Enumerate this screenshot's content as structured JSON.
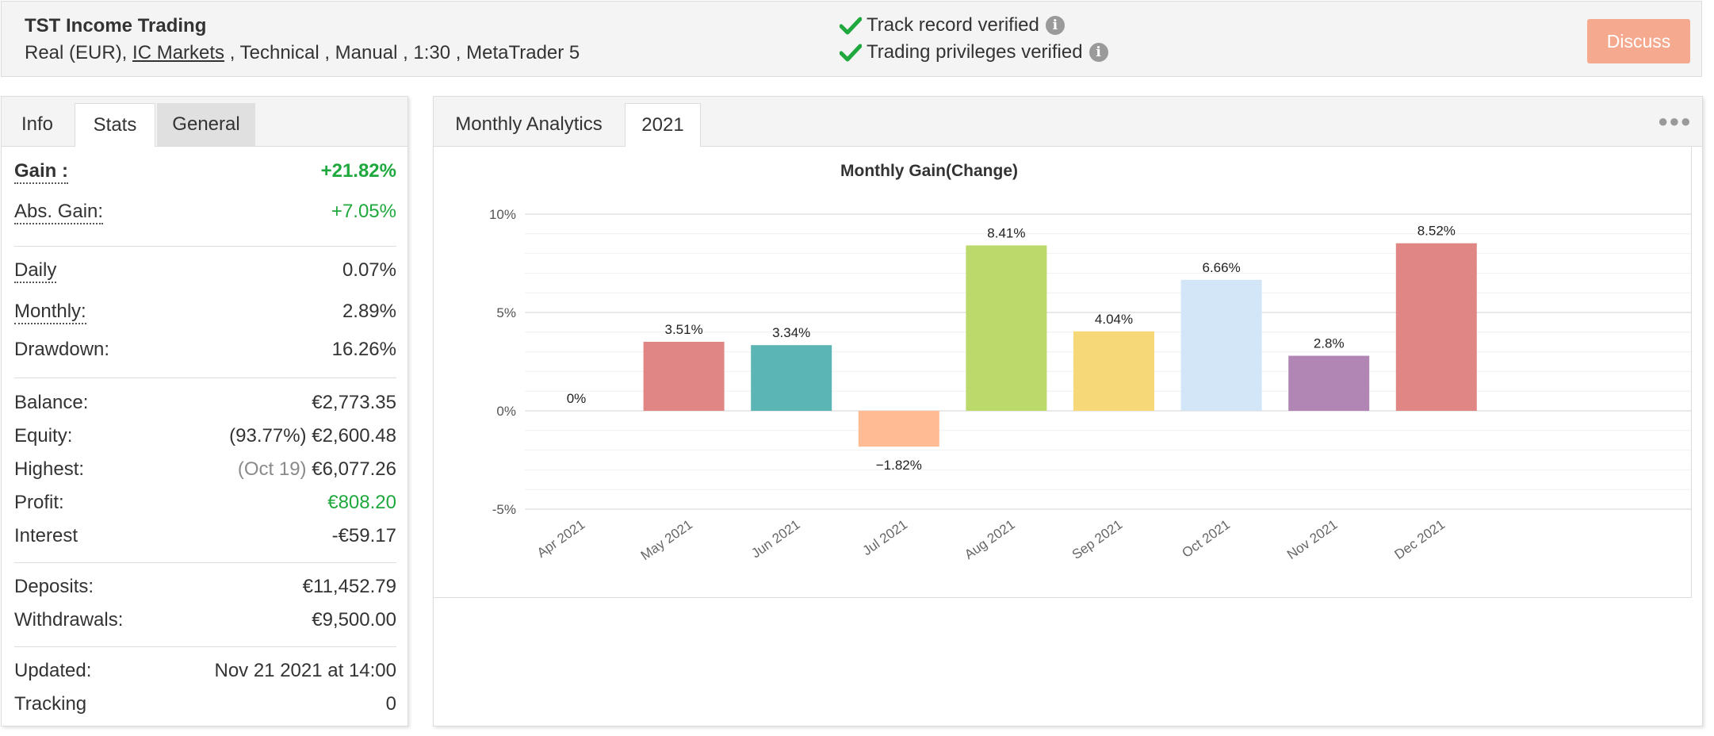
{
  "header": {
    "system_name": "TST Income Trading",
    "meta_prefix": "Real (EUR),",
    "broker": "IC Markets",
    "meta_suffix": ", Technical , Manual , 1:30 , MetaTrader 5",
    "verified": [
      {
        "label": "Track record verified"
      },
      {
        "label": "Trading privileges verified"
      }
    ],
    "discuss_label": "Discuss",
    "info_glyph": "i"
  },
  "left_tabs": [
    "Info",
    "Stats",
    "General"
  ],
  "stats": {
    "gain": {
      "label": "Gain :",
      "value": "+21.82%"
    },
    "abs_gain": {
      "label": "Abs. Gain:",
      "value": "+7.05%"
    },
    "daily": {
      "label": "Daily",
      "value": "0.07%"
    },
    "monthly": {
      "label": "Monthly:",
      "value": "2.89%"
    },
    "drawdown": {
      "label": "Drawdown:",
      "value": "16.26%"
    },
    "balance": {
      "label": "Balance:",
      "value": "€2,773.35"
    },
    "equity": {
      "label": "Equity:",
      "note": "(93.77%)",
      "value": "€2,600.48"
    },
    "highest": {
      "label": "Highest:",
      "note": "(Oct 19)",
      "value": "€6,077.26"
    },
    "profit": {
      "label": "Profit:",
      "value": "€808.20"
    },
    "interest": {
      "label": "Interest",
      "value": "-€59.17"
    },
    "deposits": {
      "label": "Deposits:",
      "value": "€11,452.79"
    },
    "withdrawals": {
      "label": "Withdrawals:",
      "value": "€9,500.00"
    },
    "updated": {
      "label": "Updated:",
      "value": "Nov 21 2021 at 14:00"
    },
    "tracking": {
      "label": "Tracking",
      "value": "0"
    }
  },
  "right_tabs": {
    "title": "Monthly Analytics",
    "year": "2021",
    "menu_glyph": "●●●"
  },
  "colors": {
    "accent": "#f5a98f",
    "green": "#1fa83d",
    "check": "#1fa83d"
  },
  "chart_data": {
    "type": "bar",
    "title": "Monthly Gain(Change)",
    "categories": [
      "Apr 2021",
      "May 2021",
      "Jun 2021",
      "Jul 2021",
      "Aug 2021",
      "Sep 2021",
      "Oct 2021",
      "Nov 2021",
      "Dec 2021"
    ],
    "values": [
      0,
      3.51,
      3.34,
      -1.82,
      8.41,
      4.04,
      6.66,
      2.8,
      8.52
    ],
    "data_labels": [
      "0%",
      "3.51%",
      "3.34%",
      "−1.82%",
      "8.41%",
      "4.04%",
      "6.66%",
      "2.8%",
      "8.52%"
    ],
    "colors": [
      "#e08786",
      "#e08786",
      "#5bb5b5",
      "#ffbc94",
      "#bcd96b",
      "#f7d879",
      "#d2e6f8",
      "#b186b4",
      "#e08786"
    ],
    "ylim": [
      -5,
      10
    ],
    "yticks": [
      10,
      5,
      0,
      -5
    ],
    "ytick_labels": [
      "10%",
      "5%",
      "0%",
      "-5%"
    ],
    "grid": true,
    "xlabel": "",
    "ylabel": ""
  }
}
